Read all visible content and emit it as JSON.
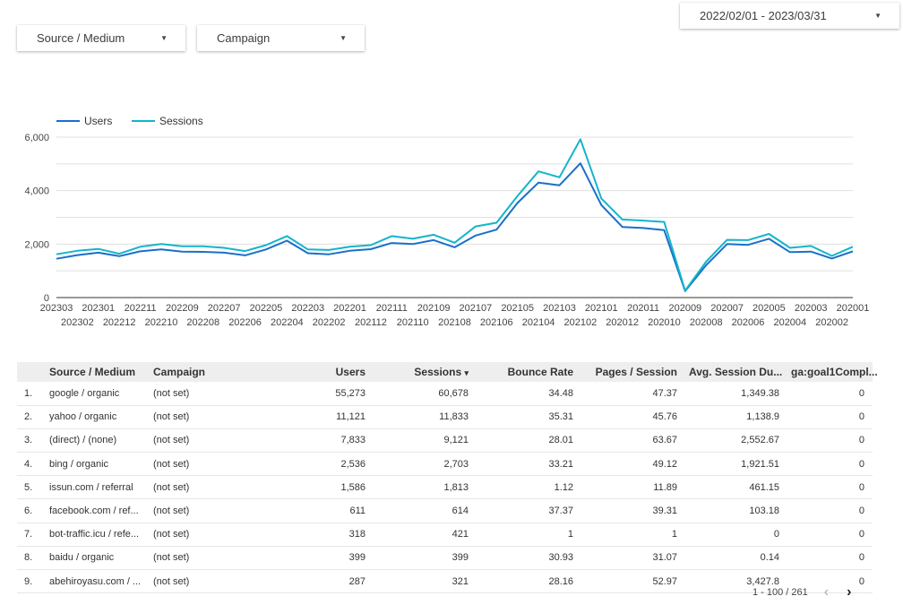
{
  "filters": {
    "source_medium": "Source / Medium",
    "campaign": "Campaign",
    "date_range": "2022/02/01 - 2023/03/31"
  },
  "icons": {
    "dropdown": "caret-down-icon",
    "prev": "chevron-left-icon",
    "next": "chevron-right-icon"
  },
  "colors": {
    "users": "#1a6fc9",
    "sessions": "#12b5cb"
  },
  "chart_data": {
    "type": "line",
    "legend_position": "top-left",
    "grid": true,
    "ylim": [
      0,
      6000
    ],
    "yticks": [
      "0",
      "2,000",
      "4,000",
      "6,000"
    ],
    "x": [
      "202303",
      "202302",
      "202301",
      "202212",
      "202211",
      "202210",
      "202209",
      "202208",
      "202207",
      "202206",
      "202205",
      "202204",
      "202203",
      "202202",
      "202201",
      "202112",
      "202111",
      "202110",
      "202109",
      "202108",
      "202107",
      "202106",
      "202105",
      "202104",
      "202103",
      "202102",
      "202101",
      "202012",
      "202011",
      "202010",
      "202009",
      "202008",
      "202007",
      "202006",
      "202005",
      "202004",
      "202003",
      "202002",
      "202001"
    ],
    "series": [
      {
        "name": "Users",
        "values": [
          1450,
          1590,
          1680,
          1550,
          1730,
          1800,
          1720,
          1710,
          1680,
          1580,
          1800,
          2130,
          1660,
          1620,
          1750,
          1810,
          2040,
          2000,
          2150,
          1880,
          2320,
          2540,
          3540,
          4300,
          4200,
          5020,
          3460,
          2640,
          2600,
          2520,
          240,
          1210,
          2000,
          1970,
          2200,
          1700,
          1720,
          1460,
          1730
        ]
      },
      {
        "name": "Sessions",
        "values": [
          1620,
          1750,
          1820,
          1640,
          1900,
          2000,
          1920,
          1920,
          1860,
          1740,
          1960,
          2300,
          1800,
          1780,
          1900,
          1960,
          2300,
          2200,
          2350,
          2050,
          2660,
          2800,
          3800,
          4720,
          4500,
          5920,
          3700,
          2920,
          2880,
          2830,
          260,
          1340,
          2160,
          2150,
          2380,
          1860,
          1930,
          1560,
          1900
        ]
      }
    ]
  },
  "table": {
    "columns": [
      "Source / Medium",
      "Campaign",
      "Users",
      "Sessions",
      "Bounce Rate",
      "Pages / Session",
      "Avg. Session Du...",
      "ga:goal1Compl..."
    ],
    "sort_indicator": "▾",
    "rows": [
      {
        "idx": "1.",
        "source": "google / organic",
        "campaign": "(not set)",
        "users": "55,273",
        "sessions": "60,678",
        "bounce": "34.48",
        "pages": "47.37",
        "duration": "1,349.38",
        "goal": "0"
      },
      {
        "idx": "2.",
        "source": "yahoo / organic",
        "campaign": "(not set)",
        "users": "11,121",
        "sessions": "11,833",
        "bounce": "35.31",
        "pages": "45.76",
        "duration": "1,138.9",
        "goal": "0"
      },
      {
        "idx": "3.",
        "source": "(direct) / (none)",
        "campaign": "(not set)",
        "users": "7,833",
        "sessions": "9,121",
        "bounce": "28.01",
        "pages": "63.67",
        "duration": "2,552.67",
        "goal": "0"
      },
      {
        "idx": "4.",
        "source": "bing / organic",
        "campaign": "(not set)",
        "users": "2,536",
        "sessions": "2,703",
        "bounce": "33.21",
        "pages": "49.12",
        "duration": "1,921.51",
        "goal": "0"
      },
      {
        "idx": "5.",
        "source": "issun.com / referral",
        "campaign": "(not set)",
        "users": "1,586",
        "sessions": "1,813",
        "bounce": "1.12",
        "pages": "11.89",
        "duration": "461.15",
        "goal": "0"
      },
      {
        "idx": "6.",
        "source": "facebook.com / ref...",
        "campaign": "(not set)",
        "users": "611",
        "sessions": "614",
        "bounce": "37.37",
        "pages": "39.31",
        "duration": "103.18",
        "goal": "0"
      },
      {
        "idx": "7.",
        "source": "bot-traffic.icu / refe...",
        "campaign": "(not set)",
        "users": "318",
        "sessions": "421",
        "bounce": "1",
        "pages": "1",
        "duration": "0",
        "goal": "0"
      },
      {
        "idx": "8.",
        "source": "baidu / organic",
        "campaign": "(not set)",
        "users": "399",
        "sessions": "399",
        "bounce": "30.93",
        "pages": "31.07",
        "duration": "0.14",
        "goal": "0"
      },
      {
        "idx": "9.",
        "source": "abehiroyasu.com / ...",
        "campaign": "(not set)",
        "users": "287",
        "sessions": "321",
        "bounce": "28.16",
        "pages": "52.97",
        "duration": "3,427.8",
        "goal": "0"
      }
    ]
  },
  "pagination": {
    "label": "1 - 100 / 261"
  }
}
